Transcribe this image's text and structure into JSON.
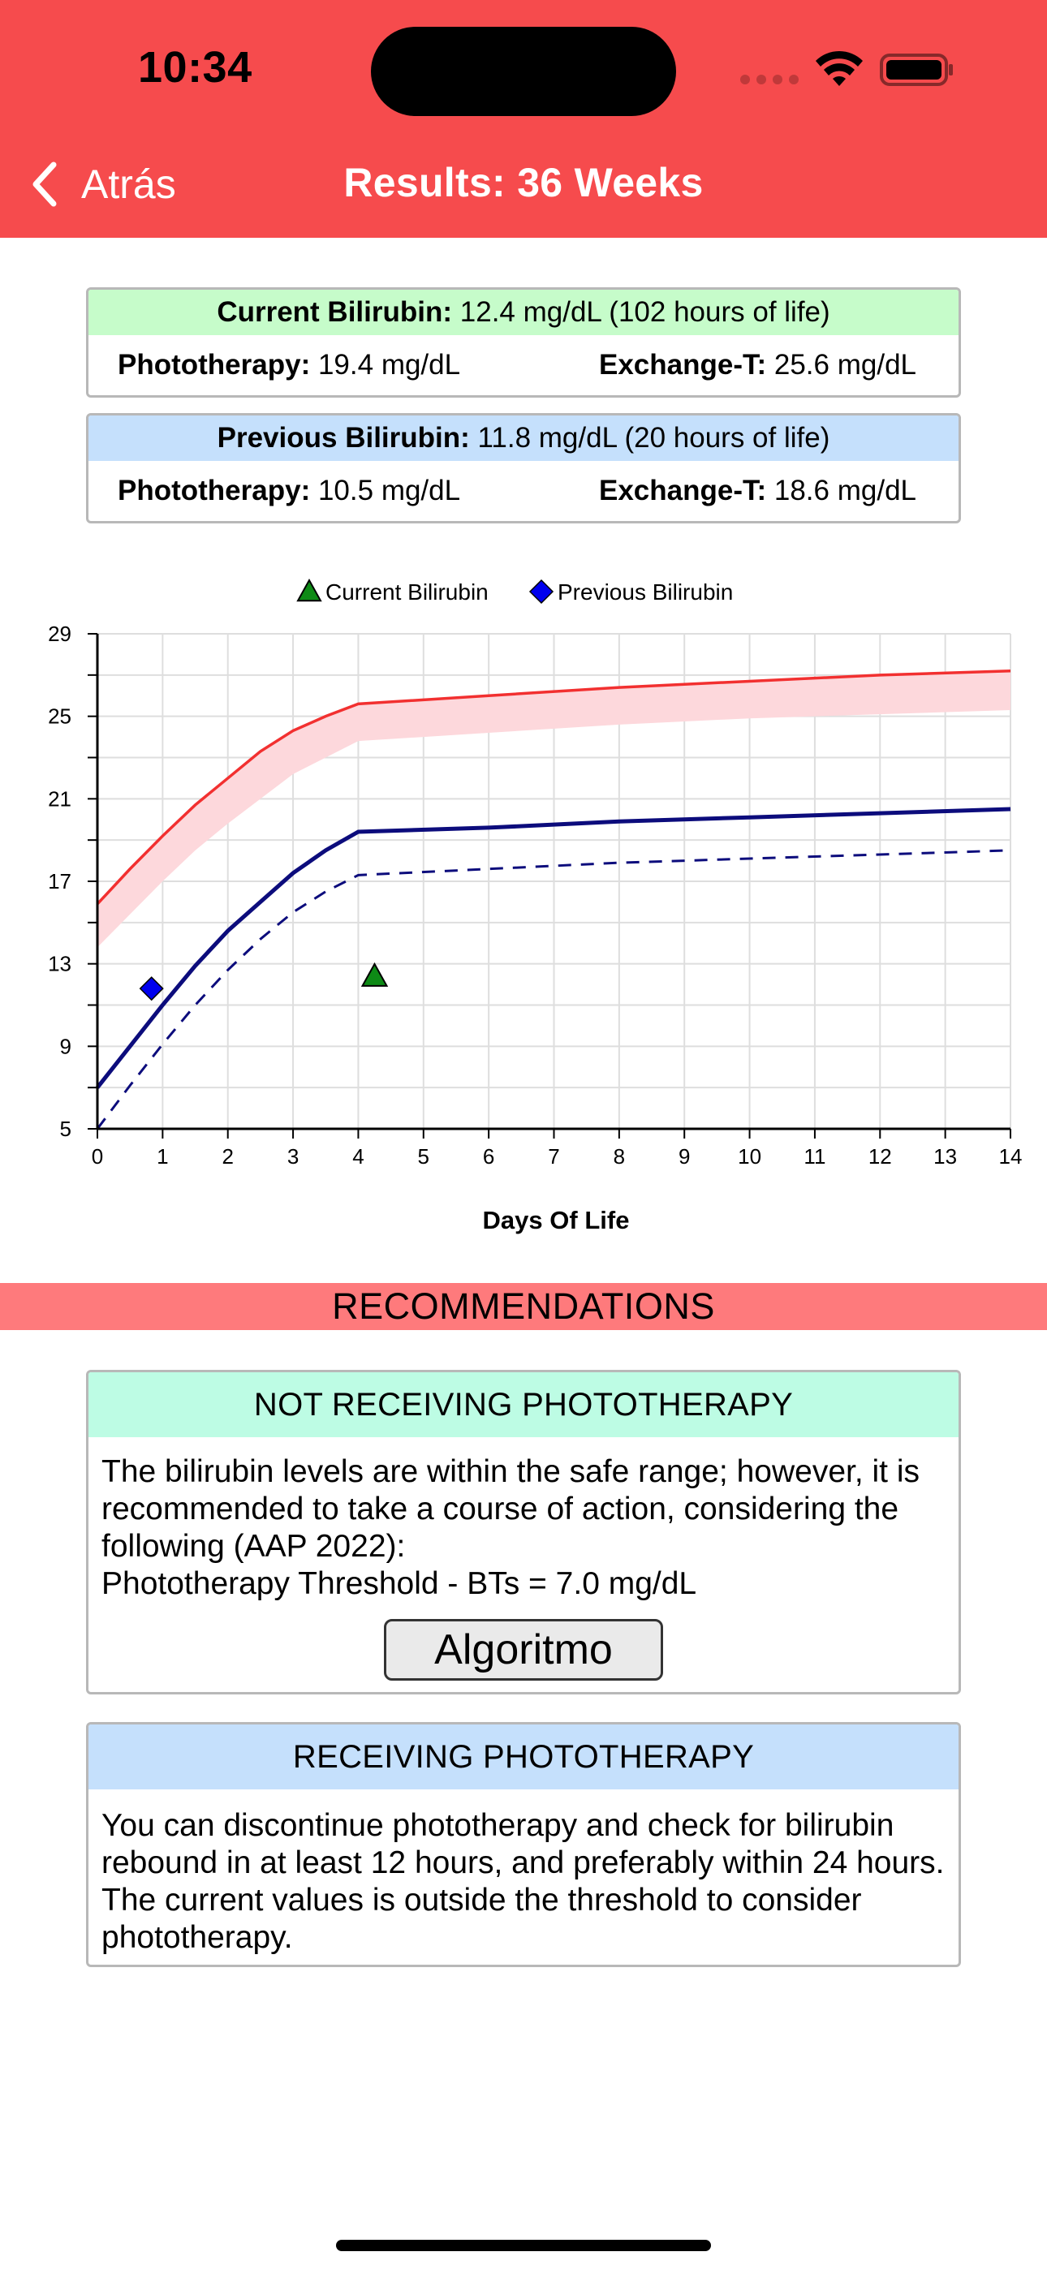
{
  "status_bar": {
    "time": "10:34"
  },
  "nav": {
    "back_label": "Atrás",
    "title": "Results: 36 Weeks"
  },
  "current": {
    "label": "Current Bilirubin:",
    "value": "12.4 mg/dL (102 hours of life)",
    "photo_label": "Phototherapy:",
    "photo_value": "19.4 mg/dL",
    "exchange_label": "Exchange-T:",
    "exchange_value": "25.6 mg/dL"
  },
  "previous": {
    "label": "Previous Bilirubin:",
    "value": "11.8 mg/dL (20 hours of life)",
    "photo_label": "Phototherapy:",
    "photo_value": "10.5 mg/dL",
    "exchange_label": "Exchange-T:",
    "exchange_value": "18.6 mg/dL"
  },
  "chart_data": {
    "type": "line",
    "xlabel": "Days Of Life",
    "ylabel": "",
    "xlim": [
      0,
      14
    ],
    "ylim": [
      5,
      29
    ],
    "x_ticks": [
      0,
      1,
      2,
      3,
      4,
      5,
      6,
      7,
      8,
      9,
      10,
      11,
      12,
      13,
      14
    ],
    "y_ticks": [
      5,
      9,
      13,
      17,
      21,
      25,
      29
    ],
    "grid": true,
    "legend_position": "top-center",
    "legend": [
      {
        "name": "Current Bilirubin",
        "marker": "triangle",
        "color": "#0e8a16"
      },
      {
        "name": "Previous Bilirubin",
        "marker": "diamond",
        "color": "#0000ee"
      }
    ],
    "series": [
      {
        "style": "exchange-line",
        "color": "#f23030",
        "x": [
          0,
          0.5,
          1,
          1.5,
          2,
          2.5,
          3,
          3.5,
          4,
          6,
          8,
          10,
          12,
          14
        ],
        "values": [
          15.9,
          17.6,
          19.2,
          20.7,
          22.0,
          23.3,
          24.3,
          25.0,
          25.6,
          26.0,
          26.4,
          26.7,
          27.0,
          27.2
        ]
      },
      {
        "style": "exchange-band-lower",
        "color": "#fdd8dc",
        "x": [
          0,
          0.5,
          1,
          1.5,
          2,
          2.5,
          3,
          3.5,
          4,
          6,
          8,
          10,
          12,
          14
        ],
        "values": [
          13.8,
          15.4,
          17.0,
          18.5,
          19.8,
          21.0,
          22.2,
          23.0,
          23.8,
          24.2,
          24.6,
          24.9,
          25.1,
          25.3
        ]
      },
      {
        "style": "phototherapy-line",
        "color": "#0c0c7c",
        "x": [
          0,
          0.5,
          1,
          1.5,
          2,
          2.5,
          3,
          3.5,
          4,
          6,
          8,
          10,
          12,
          14
        ],
        "values": [
          7.0,
          9.0,
          11.0,
          12.9,
          14.6,
          16.0,
          17.4,
          18.5,
          19.4,
          19.6,
          19.9,
          20.1,
          20.3,
          20.5
        ]
      },
      {
        "style": "phototherapy-dashed",
        "color": "#0c0c7c",
        "x": [
          0,
          0.5,
          1,
          1.5,
          2,
          2.5,
          3,
          3.5,
          4,
          6,
          8,
          10,
          12,
          14
        ],
        "values": [
          5.0,
          7.1,
          9.1,
          11.0,
          12.7,
          14.2,
          15.5,
          16.5,
          17.3,
          17.6,
          17.9,
          18.1,
          18.3,
          18.5
        ]
      }
    ],
    "points": [
      {
        "name": "Current Bilirubin",
        "marker": "triangle",
        "x": 4.25,
        "y": 12.4,
        "color": "#0e8a16"
      },
      {
        "name": "Previous Bilirubin",
        "marker": "diamond",
        "x": 0.83,
        "y": 11.8,
        "color": "#0000ee"
      }
    ]
  },
  "recommendations": {
    "title": "RECOMMENDATIONS",
    "not_receiving": {
      "title": "NOT RECEIVING PHOTOTHERAPY",
      "text": "The bilirubin levels are within the safe range; however, it is recommended to take a course of action, considering the following (AAP 2022):",
      "threshold": "Phototherapy Threshold - BTs = 7.0 mg/dL",
      "button": "Algoritmo"
    },
    "receiving": {
      "title": "RECEIVING PHOTOTHERAPY",
      "text": "You can discontinue phototherapy and check for bilirubin rebound in at least 12 hours, and preferably within 24 hours. The current values is outside the threshold to consider phototherapy."
    }
  },
  "colors": {
    "header": "#f64b4d",
    "recommendations_bar": "#fe7a7c",
    "current_head": "#c6fcca",
    "previous_head": "#c5e0fc",
    "not_receiving_head": "#bdfce4",
    "receiving_head": "#c5e0fc"
  }
}
